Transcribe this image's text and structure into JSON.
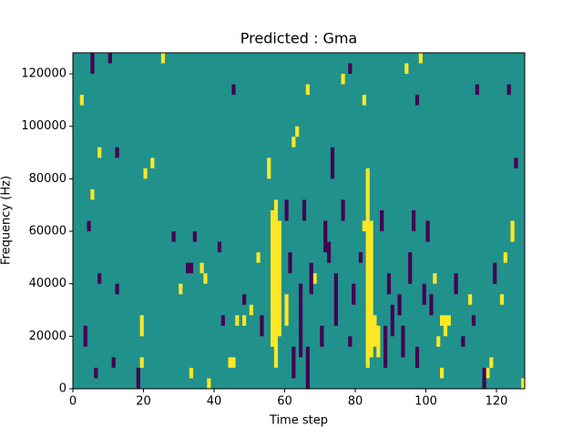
{
  "chart_data": {
    "type": "heatmap",
    "title": "Predicted : Gma",
    "xlabel": "Time step",
    "ylabel": "Frequency (Hz)",
    "xlim": [
      0,
      128
    ],
    "ylim": [
      0,
      128000
    ],
    "xticks": [
      0,
      20,
      40,
      60,
      80,
      100,
      120
    ],
    "yticks": [
      0,
      20000,
      40000,
      60000,
      80000,
      100000,
      120000
    ],
    "colormap": [
      "#440154",
      "#21918c",
      "#fde725"
    ],
    "background": 1,
    "cells": [
      [
        56,
        16000,
        68000,
        2
      ],
      [
        57,
        8000,
        72000,
        2
      ],
      [
        58,
        20000,
        64000,
        2
      ],
      [
        55,
        80000,
        88000,
        2
      ],
      [
        60,
        24000,
        36000,
        2
      ],
      [
        83,
        8000,
        84000,
        2
      ],
      [
        84,
        12000,
        64000,
        2
      ],
      [
        85,
        16000,
        28000,
        2
      ],
      [
        82,
        60000,
        64000,
        2
      ],
      [
        86,
        12000,
        24000,
        2
      ],
      [
        19,
        20000,
        28000,
        2
      ],
      [
        19,
        8000,
        12000,
        2
      ],
      [
        22,
        84000,
        88000,
        2
      ],
      [
        25,
        124000,
        128000,
        2
      ],
      [
        30,
        36000,
        40000,
        2
      ],
      [
        33,
        4000,
        8000,
        2
      ],
      [
        38,
        0,
        4000,
        2
      ],
      [
        44,
        8000,
        12000,
        2
      ],
      [
        45,
        8000,
        12000,
        2
      ],
      [
        46,
        24000,
        28000,
        2
      ],
      [
        50,
        28000,
        32000,
        2
      ],
      [
        52,
        48000,
        52000,
        2
      ],
      [
        62,
        92000,
        96000,
        2
      ],
      [
        68,
        40000,
        44000,
        2
      ],
      [
        76,
        116000,
        120000,
        2
      ],
      [
        82,
        108000,
        112000,
        2
      ],
      [
        104,
        24000,
        28000,
        2
      ],
      [
        105,
        20000,
        28000,
        2
      ],
      [
        106,
        24000,
        28000,
        2
      ],
      [
        103,
        16000,
        20000,
        2
      ],
      [
        102,
        40000,
        44000,
        2
      ],
      [
        104,
        4000,
        8000,
        2
      ],
      [
        112,
        32000,
        36000,
        2
      ],
      [
        117,
        4000,
        8000,
        2
      ],
      [
        118,
        8000,
        12000,
        2
      ],
      [
        121,
        32000,
        36000,
        2
      ],
      [
        124,
        56000,
        64000,
        2
      ],
      [
        127,
        0,
        4000,
        2
      ],
      [
        122,
        48000,
        52000,
        2
      ],
      [
        98,
        124000,
        128000,
        2
      ],
      [
        94,
        120000,
        124000,
        2
      ],
      [
        2,
        108000,
        112000,
        2
      ],
      [
        7,
        88000,
        92000,
        2
      ],
      [
        5,
        72000,
        76000,
        2
      ],
      [
        20,
        80000,
        84000,
        2
      ],
      [
        36,
        44000,
        48000,
        2
      ],
      [
        37,
        40000,
        44000,
        2
      ],
      [
        48,
        24000,
        28000,
        2
      ],
      [
        63,
        96000,
        100000,
        2
      ],
      [
        66,
        112000,
        116000,
        2
      ],
      [
        18,
        0,
        8000,
        0
      ],
      [
        3,
        16000,
        24000,
        0
      ],
      [
        6,
        4000,
        8000,
        0
      ],
      [
        12,
        36000,
        40000,
        0
      ],
      [
        11,
        8000,
        12000,
        0
      ],
      [
        5,
        120000,
        128000,
        0
      ],
      [
        10,
        124000,
        128000,
        0
      ],
      [
        12,
        88000,
        92000,
        0
      ],
      [
        4,
        60000,
        64000,
        0
      ],
      [
        7,
        40000,
        44000,
        0
      ],
      [
        28,
        56000,
        60000,
        0
      ],
      [
        32,
        44000,
        48000,
        0
      ],
      [
        33,
        44000,
        48000,
        0
      ],
      [
        34,
        56000,
        60000,
        0
      ],
      [
        41,
        52000,
        56000,
        0
      ],
      [
        42,
        24000,
        28000,
        0
      ],
      [
        45,
        112000,
        116000,
        0
      ],
      [
        48,
        32000,
        36000,
        0
      ],
      [
        53,
        20000,
        28000,
        0
      ],
      [
        60,
        64000,
        72000,
        0
      ],
      [
        61,
        44000,
        52000,
        0
      ],
      [
        62,
        4000,
        16000,
        0
      ],
      [
        64,
        12000,
        40000,
        0
      ],
      [
        65,
        64000,
        72000,
        0
      ],
      [
        66,
        0,
        16000,
        0
      ],
      [
        67,
        36000,
        48000,
        0
      ],
      [
        70,
        16000,
        24000,
        0
      ],
      [
        71,
        52000,
        64000,
        0
      ],
      [
        72,
        48000,
        56000,
        0
      ],
      [
        73,
        80000,
        92000,
        0
      ],
      [
        74,
        24000,
        44000,
        0
      ],
      [
        76,
        64000,
        72000,
        0
      ],
      [
        78,
        16000,
        20000,
        0
      ],
      [
        79,
        32000,
        40000,
        0
      ],
      [
        81,
        48000,
        52000,
        0
      ],
      [
        87,
        60000,
        68000,
        0
      ],
      [
        88,
        8000,
        24000,
        0
      ],
      [
        89,
        36000,
        44000,
        0
      ],
      [
        90,
        20000,
        32000,
        0
      ],
      [
        92,
        28000,
        36000,
        0
      ],
      [
        93,
        12000,
        24000,
        0
      ],
      [
        95,
        40000,
        52000,
        0
      ],
      [
        96,
        60000,
        68000,
        0
      ],
      [
        97,
        8000,
        16000,
        0
      ],
      [
        99,
        32000,
        40000,
        0
      ],
      [
        100,
        56000,
        64000,
        0
      ],
      [
        101,
        28000,
        36000,
        0
      ],
      [
        108,
        36000,
        44000,
        0
      ],
      [
        110,
        16000,
        20000,
        0
      ],
      [
        113,
        24000,
        28000,
        0
      ],
      [
        116,
        0,
        8000,
        0
      ],
      [
        119,
        40000,
        48000,
        0
      ],
      [
        123,
        112000,
        116000,
        0
      ],
      [
        125,
        84000,
        88000,
        0
      ],
      [
        114,
        112000,
        116000,
        0
      ],
      [
        97,
        108000,
        112000,
        0
      ],
      [
        78,
        120000,
        124000,
        0
      ]
    ]
  }
}
